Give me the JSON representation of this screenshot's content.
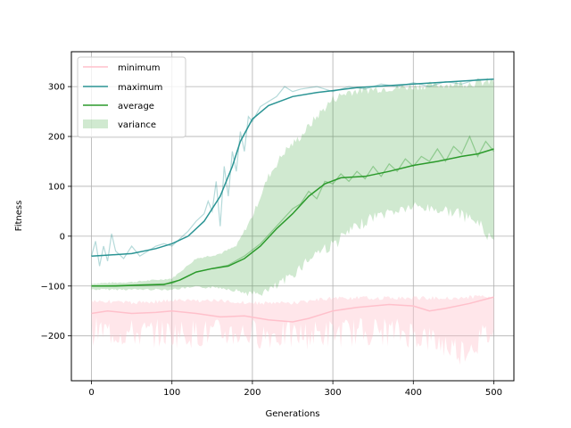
{
  "chart_data": {
    "type": "line",
    "xlabel": "Generations",
    "ylabel": "Fitness",
    "xlim": [
      -25,
      525
    ],
    "ylim": [
      -290,
      370
    ],
    "x_ticks": [
      0,
      100,
      200,
      300,
      400,
      500
    ],
    "y_ticks": [
      -200,
      -100,
      0,
      100,
      200,
      300
    ],
    "grid": true,
    "legend_position": "top-left",
    "series": [
      {
        "name": "minimum",
        "color": "#ffc0cb",
        "raw_band_alpha": 0.4,
        "smooth": [
          [
            0,
            -155
          ],
          [
            20,
            -150
          ],
          [
            50,
            -155
          ],
          [
            80,
            -153
          ],
          [
            100,
            -150
          ],
          [
            130,
            -155
          ],
          [
            160,
            -162
          ],
          [
            190,
            -160
          ],
          [
            220,
            -168
          ],
          [
            250,
            -172
          ],
          [
            270,
            -165
          ],
          [
            300,
            -150
          ],
          [
            330,
            -143
          ],
          [
            370,
            -137
          ],
          [
            400,
            -140
          ],
          [
            420,
            -150
          ],
          [
            440,
            -145
          ],
          [
            470,
            -135
          ],
          [
            500,
            -122
          ]
        ],
        "raw_range": [
          [
            0,
            -220,
            -125
          ],
          [
            50,
            -225,
            -130
          ],
          [
            100,
            -225,
            -125
          ],
          [
            150,
            -225,
            -125
          ],
          [
            200,
            -225,
            -130
          ],
          [
            250,
            -230,
            -130
          ],
          [
            300,
            -225,
            -120
          ],
          [
            350,
            -220,
            -120
          ],
          [
            400,
            -225,
            -120
          ],
          [
            460,
            -260,
            -120
          ],
          [
            500,
            -220,
            -115
          ]
        ]
      },
      {
        "name": "maximum",
        "color": "#2a9494",
        "smooth": [
          [
            0,
            -40
          ],
          [
            20,
            -38
          ],
          [
            50,
            -35
          ],
          [
            80,
            -25
          ],
          [
            100,
            -15
          ],
          [
            120,
            0
          ],
          [
            140,
            30
          ],
          [
            160,
            80
          ],
          [
            175,
            140
          ],
          [
            185,
            190
          ],
          [
            200,
            235
          ],
          [
            220,
            262
          ],
          [
            250,
            280
          ],
          [
            280,
            288
          ],
          [
            300,
            292
          ],
          [
            330,
            298
          ],
          [
            370,
            302
          ],
          [
            400,
            305
          ],
          [
            450,
            310
          ],
          [
            500,
            315
          ]
        ],
        "raw": [
          [
            0,
            -40
          ],
          [
            5,
            -10
          ],
          [
            10,
            -60
          ],
          [
            15,
            -20
          ],
          [
            20,
            -50
          ],
          [
            25,
            5
          ],
          [
            30,
            -30
          ],
          [
            40,
            -45
          ],
          [
            50,
            -20
          ],
          [
            60,
            -40
          ],
          [
            70,
            -30
          ],
          [
            80,
            -20
          ],
          [
            90,
            -15
          ],
          [
            100,
            -20
          ],
          [
            110,
            -5
          ],
          [
            120,
            10
          ],
          [
            130,
            30
          ],
          [
            140,
            45
          ],
          [
            145,
            70
          ],
          [
            150,
            50
          ],
          [
            155,
            110
          ],
          [
            160,
            20
          ],
          [
            165,
            140
          ],
          [
            170,
            80
          ],
          [
            175,
            170
          ],
          [
            180,
            130
          ],
          [
            185,
            210
          ],
          [
            190,
            170
          ],
          [
            195,
            240
          ],
          [
            200,
            230
          ],
          [
            210,
            260
          ],
          [
            220,
            270
          ],
          [
            230,
            280
          ],
          [
            240,
            300
          ],
          [
            250,
            290
          ],
          [
            260,
            295
          ],
          [
            280,
            300
          ],
          [
            300,
            290
          ],
          [
            320,
            300
          ],
          [
            340,
            295
          ],
          [
            360,
            305
          ],
          [
            380,
            300
          ],
          [
            400,
            308
          ],
          [
            420,
            300
          ],
          [
            440,
            310
          ],
          [
            460,
            305
          ],
          [
            480,
            315
          ],
          [
            500,
            315
          ]
        ]
      },
      {
        "name": "average",
        "color": "#2b9a2b",
        "smooth": [
          [
            0,
            -100
          ],
          [
            30,
            -100
          ],
          [
            60,
            -98
          ],
          [
            90,
            -97
          ],
          [
            110,
            -88
          ],
          [
            130,
            -72
          ],
          [
            150,
            -65
          ],
          [
            170,
            -60
          ],
          [
            190,
            -45
          ],
          [
            210,
            -20
          ],
          [
            230,
            15
          ],
          [
            250,
            45
          ],
          [
            270,
            80
          ],
          [
            290,
            105
          ],
          [
            310,
            117
          ],
          [
            340,
            120
          ],
          [
            370,
            130
          ],
          [
            400,
            142
          ],
          [
            430,
            150
          ],
          [
            460,
            160
          ],
          [
            480,
            165
          ],
          [
            500,
            175
          ]
        ],
        "raw": [
          [
            0,
            -100
          ],
          [
            50,
            -98
          ],
          [
            100,
            -95
          ],
          [
            130,
            -72
          ],
          [
            150,
            -65
          ],
          [
            170,
            -58
          ],
          [
            190,
            -40
          ],
          [
            210,
            -15
          ],
          [
            230,
            20
          ],
          [
            250,
            55
          ],
          [
            260,
            65
          ],
          [
            270,
            90
          ],
          [
            280,
            75
          ],
          [
            290,
            110
          ],
          [
            300,
            105
          ],
          [
            310,
            125
          ],
          [
            320,
            110
          ],
          [
            330,
            130
          ],
          [
            340,
            115
          ],
          [
            350,
            140
          ],
          [
            360,
            120
          ],
          [
            370,
            145
          ],
          [
            380,
            130
          ],
          [
            390,
            155
          ],
          [
            400,
            140
          ],
          [
            410,
            160
          ],
          [
            420,
            150
          ],
          [
            430,
            175
          ],
          [
            440,
            150
          ],
          [
            450,
            180
          ],
          [
            460,
            165
          ],
          [
            470,
            200
          ],
          [
            480,
            160
          ],
          [
            490,
            190
          ],
          [
            500,
            170
          ]
        ]
      },
      {
        "name": "variance",
        "color": "#2b9a2b",
        "fill_alpha": 0.22,
        "upper": [
          [
            0,
            -95
          ],
          [
            50,
            -92
          ],
          [
            100,
            -85
          ],
          [
            130,
            -45
          ],
          [
            160,
            -35
          ],
          [
            180,
            -20
          ],
          [
            200,
            40
          ],
          [
            220,
            120
          ],
          [
            240,
            170
          ],
          [
            260,
            200
          ],
          [
            280,
            240
          ],
          [
            300,
            275
          ],
          [
            320,
            290
          ],
          [
            350,
            295
          ],
          [
            400,
            300
          ],
          [
            450,
            305
          ],
          [
            500,
            310
          ]
        ],
        "lower": [
          [
            0,
            -105
          ],
          [
            50,
            -105
          ],
          [
            100,
            -105
          ],
          [
            130,
            -100
          ],
          [
            160,
            -100
          ],
          [
            180,
            -105
          ],
          [
            200,
            -110
          ],
          [
            220,
            -100
          ],
          [
            240,
            -80
          ],
          [
            260,
            -50
          ],
          [
            280,
            -20
          ],
          [
            300,
            -5
          ],
          [
            320,
            20
          ],
          [
            350,
            50
          ],
          [
            400,
            70
          ],
          [
            450,
            60
          ],
          [
            480,
            40
          ],
          [
            500,
            0
          ]
        ]
      }
    ]
  }
}
